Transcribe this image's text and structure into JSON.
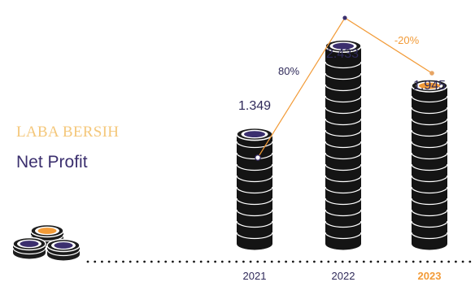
{
  "heading": {
    "indonesian": "LABA BERSIH",
    "english": "Net Profit"
  },
  "colors": {
    "accent": "#f29b38",
    "navy": "#3b2f6e",
    "coin_body": "#141414",
    "line": "#f29b38",
    "heading_indonesian": "#f4c77a",
    "heading_english": "#3b2f6e",
    "dotted_axis": "#1a1a1a"
  },
  "chart_data": {
    "type": "bar",
    "style": "stacked coins",
    "categories": [
      "2021",
      "2022",
      "2023"
    ],
    "highlight_category": "2023",
    "values": [
      1.349,
      2.433,
      1.945
    ],
    "value_labels": [
      "1.349",
      "2.433",
      "1.945"
    ],
    "growth_line": {
      "labels": [
        "80%",
        "-20%"
      ],
      "values": [
        80,
        -20
      ]
    },
    "grid": false,
    "legend": "none"
  }
}
